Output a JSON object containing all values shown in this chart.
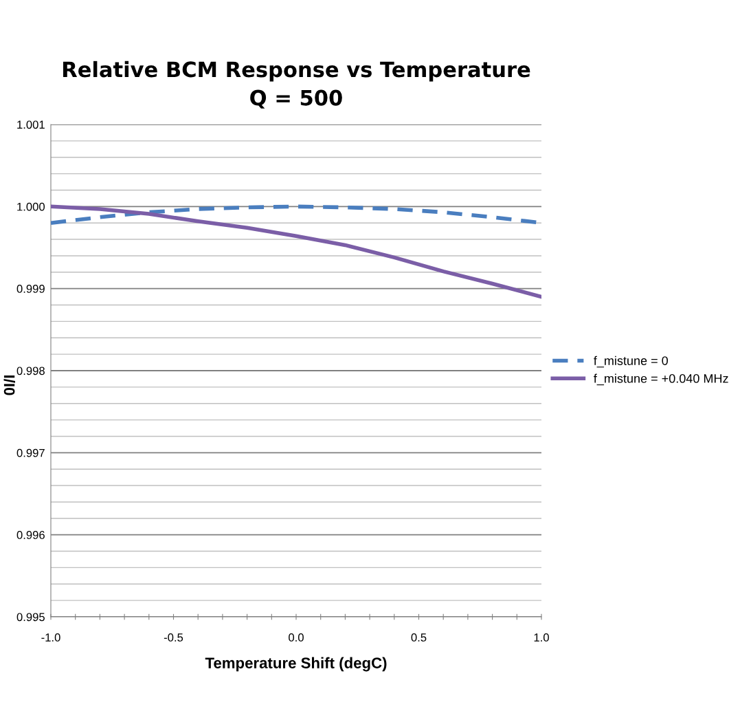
{
  "chart_data": {
    "type": "line",
    "title": "Relative BCM Response vs Temperature\nQ = 500",
    "xlabel": "Temperature Shift (degC)",
    "ylabel": "I/I0",
    "x": [
      -1.0,
      -0.8,
      -0.6,
      -0.4,
      -0.2,
      0.0,
      0.2,
      0.4,
      0.6,
      0.8,
      1.0
    ],
    "series": [
      {
        "name": "f_mistune = 0",
        "color": "#4a7ebf",
        "line_style": "dashed",
        "values": [
          0.9998,
          0.99987,
          0.99993,
          0.99997,
          0.99999,
          1.0,
          0.99999,
          0.99997,
          0.99993,
          0.99987,
          0.9998
        ]
      },
      {
        "name": "f_mistune = +0.040 MHz",
        "color": "#7b5ea7",
        "line_style": "solid",
        "values": [
          1.0,
          0.99997,
          0.99991,
          0.99982,
          0.99974,
          0.99964,
          0.99953,
          0.99938,
          0.99921,
          0.99906,
          0.9989
        ]
      }
    ],
    "xlim": [
      -1.0,
      1.0
    ],
    "ylim": [
      0.995,
      1.001
    ],
    "xticks": [
      {
        "value": -1.0,
        "label": "-1.0"
      },
      {
        "value": -0.9,
        "label": null
      },
      {
        "value": -0.8,
        "label": null
      },
      {
        "value": -0.7,
        "label": null
      },
      {
        "value": -0.6,
        "label": null
      },
      {
        "value": -0.5,
        "label": "-0.5"
      },
      {
        "value": -0.4,
        "label": null
      },
      {
        "value": -0.3,
        "label": null
      },
      {
        "value": -0.2,
        "label": null
      },
      {
        "value": -0.1,
        "label": null
      },
      {
        "value": 0.0,
        "label": "0.0"
      },
      {
        "value": 0.1,
        "label": null
      },
      {
        "value": 0.2,
        "label": null
      },
      {
        "value": 0.3,
        "label": null
      },
      {
        "value": 0.4,
        "label": null
      },
      {
        "value": 0.5,
        "label": "0.5"
      },
      {
        "value": 0.6,
        "label": null
      },
      {
        "value": 0.7,
        "label": null
      },
      {
        "value": 0.8,
        "label": null
      },
      {
        "value": 0.9,
        "label": null
      },
      {
        "value": 1.0,
        "label": "1.0"
      }
    ],
    "yticks": [
      {
        "value": 0.995,
        "label": "0.995"
      },
      {
        "value": 0.9952,
        "label": null
      },
      {
        "value": 0.9954,
        "label": null
      },
      {
        "value": 0.9956,
        "label": null
      },
      {
        "value": 0.9958,
        "label": null
      },
      {
        "value": 0.996,
        "label": "0.996"
      },
      {
        "value": 0.9962,
        "label": null
      },
      {
        "value": 0.9964,
        "label": null
      },
      {
        "value": 0.9966,
        "label": null
      },
      {
        "value": 0.9968,
        "label": null
      },
      {
        "value": 0.997,
        "label": "0.997"
      },
      {
        "value": 0.9972,
        "label": null
      },
      {
        "value": 0.9974,
        "label": null
      },
      {
        "value": 0.9976,
        "label": null
      },
      {
        "value": 0.9978,
        "label": null
      },
      {
        "value": 0.998,
        "label": "0.998"
      },
      {
        "value": 0.9982,
        "label": null
      },
      {
        "value": 0.9984,
        "label": null
      },
      {
        "value": 0.9986,
        "label": null
      },
      {
        "value": 0.9988,
        "label": null
      },
      {
        "value": 0.999,
        "label": "0.999"
      },
      {
        "value": 0.9992,
        "label": null
      },
      {
        "value": 0.9994,
        "label": null
      },
      {
        "value": 0.9996,
        "label": null
      },
      {
        "value": 0.9998,
        "label": null
      },
      {
        "value": 1.0,
        "label": "1.000"
      },
      {
        "value": 1.0002,
        "label": null
      },
      {
        "value": 1.0004,
        "label": null
      },
      {
        "value": 1.0006,
        "label": null
      },
      {
        "value": 1.0008,
        "label": null
      },
      {
        "value": 1.001,
        "label": "1.001"
      }
    ],
    "grid": "y",
    "legend": "right"
  }
}
